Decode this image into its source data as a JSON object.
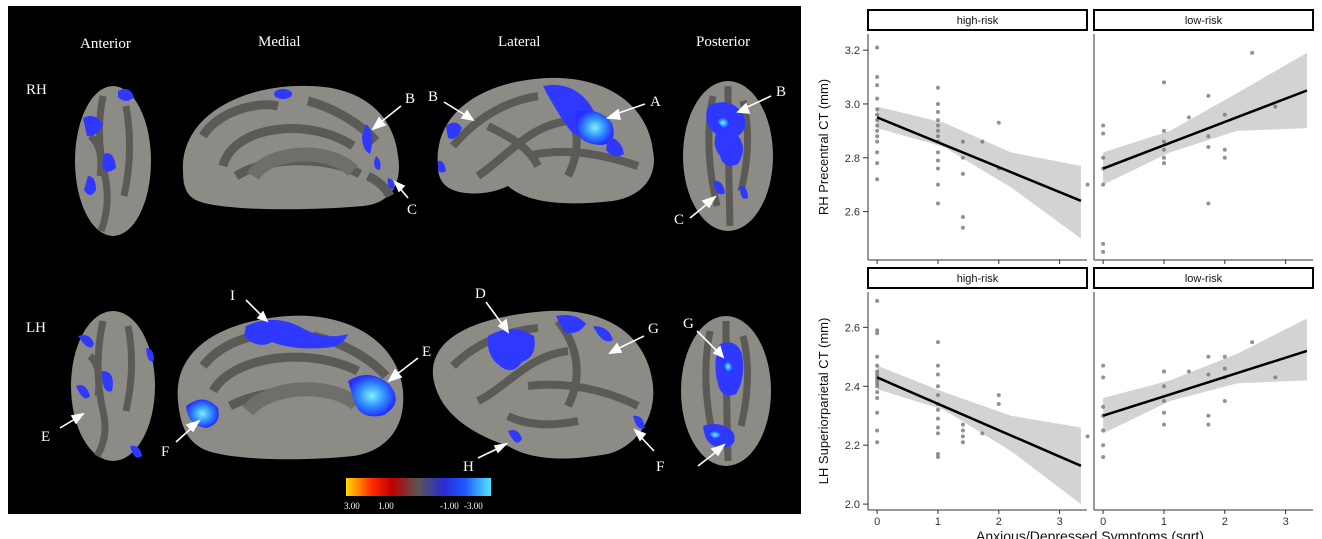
{
  "figure": {
    "views": [
      "Anterior",
      "Medial",
      "Lateral",
      "Posterior"
    ],
    "hemispheres": [
      "RH",
      "LH"
    ],
    "region_labels": {
      "rh": [
        "A",
        "B",
        "B",
        "B",
        "C",
        "C"
      ],
      "lh": [
        "D",
        "E",
        "E",
        "F",
        "F",
        "G",
        "G",
        "H",
        "I"
      ]
    },
    "colorbar": {
      "ticks": [
        "3.00",
        "1.00",
        "-1.00",
        "-3.00"
      ],
      "colors": [
        "#ffd800",
        "#ff2a00",
        "#c00000",
        "#555555",
        "#2a2ad8",
        "#1e58ff",
        "#4fe6ff"
      ]
    },
    "overlay_color": "#2f38ff",
    "highlight_color": "#5fd8ff",
    "cortex_colors": {
      "gyri": "#8c8b86",
      "sulci": "#5b5a56"
    }
  },
  "chart_data": [
    {
      "type": "scatter",
      "facets": [
        "high-risk",
        "low-risk"
      ],
      "xlabel": "",
      "ylabel": "RH Precentral CT (mm)",
      "xticks": [
        0,
        1,
        2,
        3
      ],
      "yticks": [
        2.6,
        2.8,
        3.0,
        3.2
      ],
      "xlim": [
        -0.15,
        3.45
      ],
      "ylim": [
        2.42,
        3.26
      ],
      "panels": [
        {
          "facet": "high-risk",
          "points": [
            [
              0,
              3.21
            ],
            [
              0,
              3.1
            ],
            [
              0,
              3.07
            ],
            [
              0,
              3.02
            ],
            [
              0,
              2.98
            ],
            [
              0,
              2.96
            ],
            [
              0,
              2.94
            ],
            [
              0,
              2.92
            ],
            [
              0,
              2.9
            ],
            [
              0,
              2.88
            ],
            [
              0,
              2.86
            ],
            [
              0,
              2.82
            ],
            [
              0,
              2.78
            ],
            [
              0,
              2.72
            ],
            [
              1,
              3.06
            ],
            [
              1,
              3.0
            ],
            [
              1,
              2.97
            ],
            [
              1,
              2.94
            ],
            [
              1,
              2.92
            ],
            [
              1,
              2.9
            ],
            [
              1,
              2.88
            ],
            [
              1,
              2.86
            ],
            [
              1,
              2.82
            ],
            [
              1,
              2.79
            ],
            [
              1,
              2.76
            ],
            [
              1,
              2.7
            ],
            [
              1,
              2.63
            ],
            [
              1.41,
              2.86
            ],
            [
              1.41,
              2.8
            ],
            [
              1.41,
              2.74
            ],
            [
              1.41,
              2.58
            ],
            [
              1.41,
              2.54
            ],
            [
              1.73,
              2.86
            ],
            [
              2,
              2.93
            ],
            [
              2,
              2.76
            ],
            [
              3.46,
              2.7
            ]
          ],
          "fit": {
            "x": [
              0,
              3.35
            ],
            "y": [
              2.95,
              2.64
            ]
          },
          "ci_lower": [
            2.91,
            2.84,
            2.69,
            2.5
          ],
          "ci_upper": [
            2.99,
            2.93,
            2.82,
            2.77
          ],
          "ci_x": [
            0,
            1.1,
            2.2,
            3.35
          ]
        },
        {
          "facet": "low-risk",
          "points": [
            [
              0,
              2.92
            ],
            [
              0,
              2.89
            ],
            [
              0,
              2.8
            ],
            [
              0,
              2.76
            ],
            [
              0,
              2.7
            ],
            [
              0,
              2.48
            ],
            [
              0,
              2.45
            ],
            [
              1,
              3.08
            ],
            [
              1,
              2.9
            ],
            [
              1,
              2.86
            ],
            [
              1,
              2.83
            ],
            [
              1,
              2.8
            ],
            [
              1,
              2.78
            ],
            [
              1.41,
              2.95
            ],
            [
              1.73,
              3.03
            ],
            [
              1.73,
              2.88
            ],
            [
              1.73,
              2.84
            ],
            [
              1.73,
              2.63
            ],
            [
              2,
              2.96
            ],
            [
              2,
              2.83
            ],
            [
              2,
              2.8
            ],
            [
              2.45,
              3.19
            ],
            [
              2.83,
              2.99
            ]
          ],
          "fit": {
            "x": [
              0,
              3.35
            ],
            "y": [
              2.76,
              3.05
            ]
          },
          "ci_lower": [
            2.7,
            2.82,
            2.9,
            2.91
          ],
          "ci_upper": [
            2.82,
            2.9,
            3.04,
            3.19
          ],
          "ci_x": [
            0,
            1.1,
            2.2,
            3.35
          ]
        }
      ]
    },
    {
      "type": "scatter",
      "facets": [
        "high-risk",
        "low-risk"
      ],
      "xlabel": "Anxious/Depressed Symptoms (sqrt)",
      "ylabel": "LH Superiorparietal CT (mm)",
      "xticks": [
        0,
        1,
        2,
        3
      ],
      "yticks": [
        2.0,
        2.2,
        2.4,
        2.6
      ],
      "xlim": [
        -0.15,
        3.45
      ],
      "ylim": [
        1.98,
        2.72
      ],
      "panels": [
        {
          "facet": "high-risk",
          "points": [
            [
              0,
              2.69
            ],
            [
              0,
              2.59
            ],
            [
              0,
              2.58
            ],
            [
              0,
              2.5
            ],
            [
              0,
              2.47
            ],
            [
              0,
              2.45
            ],
            [
              0,
              2.44
            ],
            [
              0,
              2.43
            ],
            [
              0,
              2.42
            ],
            [
              0,
              2.41
            ],
            [
              0,
              2.4
            ],
            [
              0,
              2.38
            ],
            [
              0,
              2.36
            ],
            [
              0,
              2.31
            ],
            [
              0,
              2.25
            ],
            [
              0,
              2.21
            ],
            [
              1,
              2.55
            ],
            [
              1,
              2.47
            ],
            [
              1,
              2.44
            ],
            [
              1,
              2.4
            ],
            [
              1,
              2.37
            ],
            [
              1,
              2.34
            ],
            [
              1,
              2.32
            ],
            [
              1,
              2.29
            ],
            [
              1,
              2.26
            ],
            [
              1,
              2.24
            ],
            [
              1,
              2.17
            ],
            [
              1,
              2.16
            ],
            [
              1.41,
              2.27
            ],
            [
              1.41,
              2.25
            ],
            [
              1.41,
              2.23
            ],
            [
              1.41,
              2.21
            ],
            [
              1.73,
              2.24
            ],
            [
              2,
              2.37
            ],
            [
              2,
              2.34
            ],
            [
              3.46,
              2.23
            ]
          ],
          "fit": {
            "x": [
              0,
              3.35
            ],
            "y": [
              2.43,
              2.13
            ]
          },
          "ci_lower": [
            2.39,
            2.32,
            2.18,
            2.0
          ],
          "ci_upper": [
            2.47,
            2.38,
            2.3,
            2.26
          ],
          "ci_x": [
            0,
            1.1,
            2.2,
            3.35
          ]
        },
        {
          "facet": "low-risk",
          "points": [
            [
              0,
              2.47
            ],
            [
              0,
              2.43
            ],
            [
              0,
              2.33
            ],
            [
              0,
              2.3
            ],
            [
              0,
              2.25
            ],
            [
              0,
              2.2
            ],
            [
              0,
              2.16
            ],
            [
              1,
              2.45
            ],
            [
              1,
              2.4
            ],
            [
              1,
              2.35
            ],
            [
              1,
              2.31
            ],
            [
              1,
              2.27
            ],
            [
              1.41,
              2.45
            ],
            [
              1.73,
              2.5
            ],
            [
              1.73,
              2.44
            ],
            [
              1.73,
              2.3
            ],
            [
              1.73,
              2.27
            ],
            [
              2,
              2.5
            ],
            [
              2,
              2.46
            ],
            [
              2,
              2.43
            ],
            [
              2,
              2.35
            ],
            [
              2.45,
              2.55
            ],
            [
              2.83,
              2.43
            ]
          ],
          "fit": {
            "x": [
              0,
              3.35
            ],
            "y": [
              2.3,
              2.52
            ]
          },
          "ci_lower": [
            2.24,
            2.35,
            2.41,
            2.42
          ],
          "ci_upper": [
            2.36,
            2.42,
            2.51,
            2.63
          ],
          "ci_x": [
            0,
            1.1,
            2.2,
            3.35
          ]
        }
      ]
    }
  ]
}
